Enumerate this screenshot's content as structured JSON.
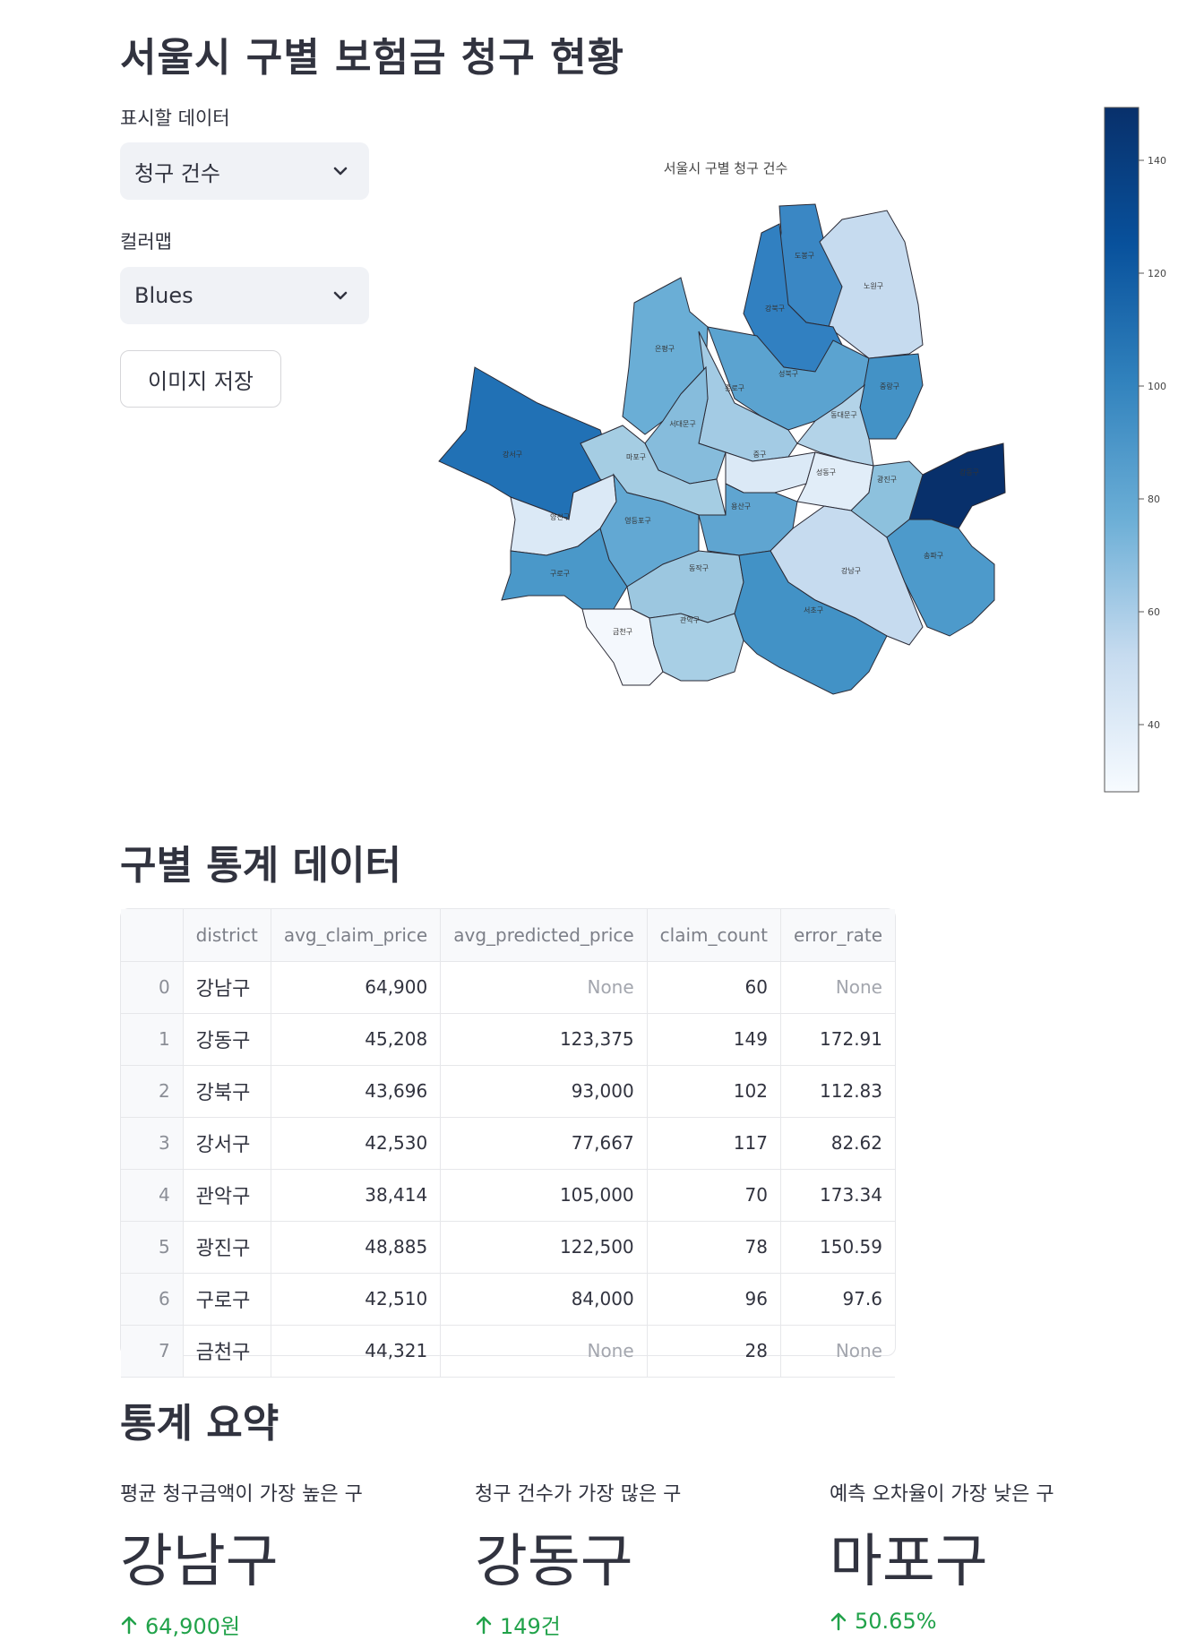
{
  "page": {
    "title": "서울시 구별 보험금 청구 현황"
  },
  "controls": {
    "data_label": "표시할 데이터",
    "data_value": "청구 건수",
    "cmap_label": "컬러맵",
    "cmap_value": "Blues",
    "save_button": "이미지 저장"
  },
  "map": {
    "title": "서울시 구별 청구 건수",
    "colorbar_ticks": [
      "140",
      "120",
      "100",
      "80",
      "60",
      "40"
    ],
    "districts": [
      "도봉구",
      "노원구",
      "강북구",
      "은평구",
      "성북구",
      "종로구",
      "중랑구",
      "동대문구",
      "서대문구",
      "강서구",
      "마포구",
      "중구",
      "성동구",
      "광진구",
      "강동구",
      "양천구",
      "영등포구",
      "용산구",
      "구로구",
      "동작구",
      "강남구",
      "송파구",
      "금천구",
      "관악구",
      "서초구"
    ]
  },
  "table": {
    "section_title": "구별 통계 데이터",
    "columns": [
      "",
      "district",
      "avg_claim_price",
      "avg_predicted_price",
      "claim_count",
      "error_rate"
    ],
    "rows": [
      [
        "0",
        "강남구",
        "64,900",
        "None",
        "60",
        "None"
      ],
      [
        "1",
        "강동구",
        "45,208",
        "123,375",
        "149",
        "172.91"
      ],
      [
        "2",
        "강북구",
        "43,696",
        "93,000",
        "102",
        "112.83"
      ],
      [
        "3",
        "강서구",
        "42,530",
        "77,667",
        "117",
        "82.62"
      ],
      [
        "4",
        "관악구",
        "38,414",
        "105,000",
        "70",
        "173.34"
      ],
      [
        "5",
        "광진구",
        "48,885",
        "122,500",
        "78",
        "150.59"
      ],
      [
        "6",
        "구로구",
        "42,510",
        "84,000",
        "96",
        "97.6"
      ],
      [
        "7",
        "금천구",
        "44,321",
        "None",
        "28",
        "None"
      ]
    ]
  },
  "summary": {
    "section_title": "통계 요약",
    "metrics": [
      {
        "label": "평균 청구금액이 가장 높은 구",
        "value": "강남구",
        "delta": "64,900원"
      },
      {
        "label": "청구 건수가 가장 많은 구",
        "value": "강동구",
        "delta": "149건"
      },
      {
        "label": "예측 오차율이 가장 낮은 구",
        "value": "마포구",
        "delta": "50.65%"
      }
    ]
  },
  "colors": {
    "accent_green": "#21a24a",
    "colorscale_low": "#f7fbff",
    "colorscale_high": "#08306b"
  }
}
